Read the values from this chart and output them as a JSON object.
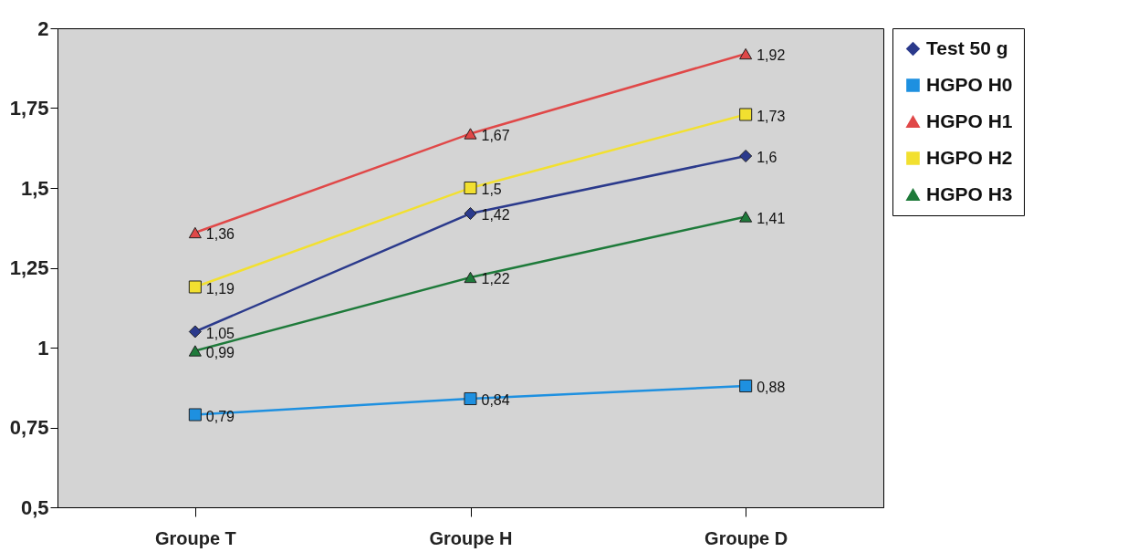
{
  "chart_data": {
    "type": "line",
    "categories": [
      "Groupe T",
      "Groupe H",
      "Groupe D"
    ],
    "series": [
      {
        "name": "Test 50 g",
        "color": "#2b3a8c",
        "marker": "diamond",
        "values": [
          1.05,
          1.42,
          1.6
        ],
        "value_labels": [
          "1,05",
          "1,42",
          "1,6"
        ]
      },
      {
        "name": "HGPO H0",
        "color": "#1e90e0",
        "marker": "square",
        "values": [
          0.79,
          0.84,
          0.88
        ],
        "value_labels": [
          "0,79",
          "0,84",
          "0,88"
        ]
      },
      {
        "name": "HGPO H1",
        "color": "#e04848",
        "marker": "triangle",
        "values": [
          1.36,
          1.67,
          1.92
        ],
        "value_labels": [
          "1,36",
          "1,67",
          "1,92"
        ]
      },
      {
        "name": "HGPO H2",
        "color": "#f2e030",
        "marker": "square",
        "values": [
          1.19,
          1.5,
          1.73
        ],
        "value_labels": [
          "1,19",
          "1,5",
          "1,73"
        ]
      },
      {
        "name": "HGPO H3",
        "color": "#1e7a3a",
        "marker": "triangle",
        "values": [
          0.99,
          1.22,
          1.41
        ],
        "value_labels": [
          "0,99",
          "1,22",
          "1,41"
        ]
      }
    ],
    "ylim": [
      0.5,
      2
    ],
    "yticks": [
      {
        "value": 0.5,
        "label": "0,5"
      },
      {
        "value": 0.75,
        "label": "0,75"
      },
      1,
      {
        "value": 1.25,
        "label": "1,25"
      },
      {
        "value": 1.5,
        "label": "1,5"
      },
      {
        "value": 1.75,
        "label": "1,75"
      },
      2
    ],
    "grid": false,
    "legend": "right",
    "line_style": "solid"
  }
}
